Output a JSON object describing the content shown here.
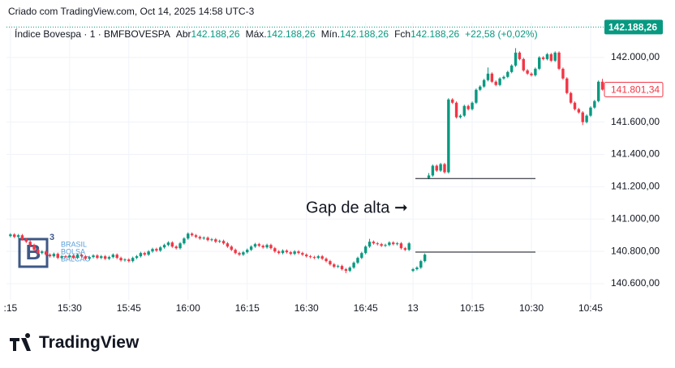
{
  "header": {
    "credit": "Criado com TradingView.com, Oct 14, 2025 14:58 UTC-3"
  },
  "chart_data": {
    "type": "candlestick",
    "legend": {
      "symbol": "Índice Bovespa · 1 · BMFBOVESPA",
      "fields": [
        {
          "label": "Abr",
          "value": "142.188,26"
        },
        {
          "label": "Máx.",
          "value": "142.188,26"
        },
        {
          "label": "Mín.",
          "value": "142.188,26"
        },
        {
          "label": "Fch",
          "value": "142.188,26"
        }
      ],
      "change": "+22,58 (+0,02%)"
    },
    "up_color": "#089981",
    "down_color": "#f23645",
    "grid": true,
    "xlim": [
      -1,
      150.5
    ],
    "xticks": [
      {
        "value": 0,
        "label": ":15"
      },
      {
        "value": 15,
        "label": "15:30"
      },
      {
        "value": 30,
        "label": "15:45"
      },
      {
        "value": 45,
        "label": "16:00"
      },
      {
        "value": 60,
        "label": "16:15"
      },
      {
        "value": 75,
        "label": "16:30"
      },
      {
        "value": 90,
        "label": "16:45"
      },
      {
        "value": 102,
        "label": "13"
      },
      {
        "value": 117,
        "label": "10:15"
      },
      {
        "value": 132,
        "label": "10:30"
      },
      {
        "value": 147,
        "label": "10:45"
      }
    ],
    "ylim": [
      140500,
      142180
    ],
    "yticks": [
      {
        "value": 140600,
        "label": "140.600,00"
      },
      {
        "value": 140800,
        "label": "140.800,00"
      },
      {
        "value": 141000,
        "label": "141.000,00"
      },
      {
        "value": 141200,
        "label": "141.200,00"
      },
      {
        "value": 141400,
        "label": "141.400,00"
      },
      {
        "value": 141600,
        "label": "141.600,00"
      },
      {
        "value": 141800,
        "label": "141.800,00"
      },
      {
        "value": 142000,
        "label": "142.000,00"
      }
    ],
    "price_tags": [
      {
        "value": 142188.26,
        "label": "142.188,26",
        "color": "#089981"
      },
      {
        "value": 141801.34,
        "label": "141.801,34",
        "color": "#f23645"
      }
    ],
    "hlines": [
      141251,
      140796
    ],
    "annotation": "Gap de alta ➞",
    "watermark": {
      "logo": "B",
      "logo_sup": "3",
      "lines": [
        "BRASIL",
        "BOLSA",
        "BALCÃO"
      ]
    },
    "ohlc": [
      [
        140895,
        140913,
        140887,
        140905
      ],
      [
        140905,
        140913,
        140882,
        140890
      ],
      [
        140890,
        140908,
        140882,
        140900
      ],
      [
        140900,
        140908,
        140867,
        140875
      ],
      [
        140875,
        140883,
        140852,
        140860
      ],
      [
        140860,
        140868,
        140832,
        140840
      ],
      [
        140840,
        140848,
        140802,
        140810
      ],
      [
        140810,
        140818,
        140782,
        140790
      ],
      [
        140790,
        140808,
        140782,
        140800
      ],
      [
        140800,
        140808,
        140772,
        140780
      ],
      [
        140780,
        140788,
        140762,
        140770
      ],
      [
        140770,
        140793,
        140762,
        140785
      ],
      [
        140785,
        140793,
        140752,
        140760
      ],
      [
        140760,
        140778,
        140752,
        140770
      ],
      [
        140770,
        140778,
        140757,
        140765
      ],
      [
        140765,
        140783,
        140757,
        140775
      ],
      [
        140775,
        140783,
        140752,
        140760
      ],
      [
        140760,
        140788,
        140752,
        140780
      ],
      [
        140780,
        140788,
        140762,
        140770
      ],
      [
        140770,
        140778,
        140747,
        140755
      ],
      [
        140755,
        140773,
        140747,
        140765
      ],
      [
        140765,
        140783,
        140757,
        140775
      ],
      [
        140775,
        140783,
        140752,
        140760
      ],
      [
        140760,
        140778,
        140752,
        140770
      ],
      [
        140770,
        140778,
        140747,
        140755
      ],
      [
        140755,
        140773,
        140747,
        140765
      ],
      [
        140765,
        140788,
        140757,
        140780
      ],
      [
        140780,
        140788,
        140752,
        140760
      ],
      [
        140760,
        140768,
        140737,
        140745
      ],
      [
        140745,
        140758,
        140737,
        140750
      ],
      [
        140750,
        140758,
        140732,
        140740
      ],
      [
        140740,
        140768,
        140732,
        140760
      ],
      [
        140760,
        140778,
        140752,
        140770
      ],
      [
        140770,
        140798,
        140762,
        140790
      ],
      [
        140790,
        140798,
        140772,
        140780
      ],
      [
        140780,
        140808,
        140772,
        140800
      ],
      [
        140800,
        140823,
        140792,
        140815
      ],
      [
        140815,
        140823,
        140797,
        140805
      ],
      [
        140805,
        140833,
        140797,
        140825
      ],
      [
        140825,
        140848,
        140817,
        140840
      ],
      [
        140840,
        140863,
        140832,
        140855
      ],
      [
        140855,
        140863,
        140822,
        140830
      ],
      [
        140830,
        140838,
        140812,
        140820
      ],
      [
        140820,
        140858,
        140812,
        140850
      ],
      [
        140850,
        140888,
        140842,
        140880
      ],
      [
        140880,
        140918,
        140872,
        140910
      ],
      [
        140910,
        140918,
        140892,
        140900
      ],
      [
        140900,
        140908,
        140882,
        140890
      ],
      [
        140890,
        140898,
        140872,
        140880
      ],
      [
        140880,
        140893,
        140872,
        140885
      ],
      [
        140885,
        140893,
        140862,
        140870
      ],
      [
        140870,
        140883,
        140862,
        140875
      ],
      [
        140875,
        140883,
        140852,
        140860
      ],
      [
        140860,
        140873,
        140852,
        140865
      ],
      [
        140865,
        140873,
        140842,
        140850
      ],
      [
        140850,
        140858,
        140822,
        140830
      ],
      [
        140830,
        140838,
        140802,
        140810
      ],
      [
        140810,
        140818,
        140782,
        140790
      ],
      [
        140790,
        140798,
        140772,
        140780
      ],
      [
        140780,
        140803,
        140772,
        140795
      ],
      [
        140795,
        140818,
        140787,
        140810
      ],
      [
        140810,
        140838,
        140802,
        140830
      ],
      [
        140830,
        140853,
        140822,
        140845
      ],
      [
        140845,
        140853,
        140827,
        140835
      ],
      [
        140835,
        140843,
        140817,
        140825
      ],
      [
        140825,
        140848,
        140817,
        140840
      ],
      [
        140840,
        140848,
        140812,
        140820
      ],
      [
        140820,
        140828,
        140792,
        140800
      ],
      [
        140800,
        140808,
        140782,
        140790
      ],
      [
        140790,
        140813,
        140782,
        140805
      ],
      [
        140805,
        140813,
        140787,
        140795
      ],
      [
        140795,
        140803,
        140777,
        140785
      ],
      [
        140785,
        140808,
        140777,
        140800
      ],
      [
        140800,
        140808,
        140782,
        140790
      ],
      [
        140790,
        140798,
        140772,
        140780
      ],
      [
        140780,
        140788,
        140762,
        140770
      ],
      [
        140770,
        140778,
        140757,
        140765
      ],
      [
        140765,
        140773,
        140752,
        140760
      ],
      [
        140760,
        140778,
        140752,
        140770
      ],
      [
        140770,
        140778,
        140747,
        140755
      ],
      [
        140755,
        140763,
        140732,
        140740
      ],
      [
        140740,
        140748,
        140712,
        140720
      ],
      [
        140720,
        140728,
        140697,
        140705
      ],
      [
        140705,
        140718,
        140697,
        140710
      ],
      [
        140710,
        140718,
        140682,
        140690
      ],
      [
        140690,
        140698,
        140665,
        140680
      ],
      [
        140680,
        140708,
        140672,
        140700
      ],
      [
        140700,
        140738,
        140692,
        140730
      ],
      [
        140730,
        140768,
        140722,
        140760
      ],
      [
        140760,
        140798,
        140752,
        140790
      ],
      [
        140790,
        140838,
        140782,
        140830
      ],
      [
        140830,
        140878,
        140822,
        140860
      ],
      [
        140860,
        140868,
        140842,
        140850
      ],
      [
        140850,
        140858,
        140837,
        140845
      ],
      [
        140845,
        140853,
        140827,
        140835
      ],
      [
        140835,
        140848,
        140827,
        140840
      ],
      [
        140840,
        140863,
        140832,
        140855
      ],
      [
        140855,
        140863,
        140837,
        140845
      ],
      [
        140845,
        140858,
        140837,
        140850
      ],
      [
        140850,
        140858,
        140812,
        140820
      ],
      [
        140820,
        140828,
        140802,
        140810
      ],
      [
        140810,
        140858,
        140802,
        140850
      ],
      [
        140680,
        140698,
        140672,
        140690
      ],
      [
        140690,
        140708,
        140682,
        140700
      ],
      [
        140700,
        140748,
        140692,
        140740
      ],
      [
        140740,
        140788,
        140732,
        140780
      ],
      [
        141255,
        141285,
        141247,
        141270
      ],
      [
        141270,
        141338,
        141262,
        141330
      ],
      [
        141330,
        141338,
        141292,
        141300
      ],
      [
        141300,
        141348,
        141292,
        141340
      ],
      [
        141340,
        141348,
        141282,
        141290
      ],
      [
        141290,
        141748,
        141282,
        141740
      ],
      [
        141740,
        141748,
        141712,
        141720
      ],
      [
        141720,
        141728,
        141622,
        141630
      ],
      [
        141630,
        141648,
        141622,
        141640
      ],
      [
        141640,
        141708,
        141632,
        141700
      ],
      [
        141700,
        141708,
        141672,
        141680
      ],
      [
        141680,
        141728,
        141672,
        141720
      ],
      [
        141720,
        141808,
        141712,
        141800
      ],
      [
        141800,
        141828,
        141792,
        141820
      ],
      [
        141820,
        141868,
        141812,
        141860
      ],
      [
        141860,
        141938,
        141852,
        141900
      ],
      [
        141900,
        141908,
        141842,
        141850
      ],
      [
        141850,
        141858,
        141822,
        141830
      ],
      [
        141830,
        141878,
        141822,
        141870
      ],
      [
        141870,
        141888,
        141862,
        141880
      ],
      [
        141880,
        141918,
        141872,
        141910
      ],
      [
        141910,
        141958,
        141902,
        141950
      ],
      [
        141950,
        142058,
        141942,
        142030
      ],
      [
        142030,
        142038,
        141982,
        141990
      ],
      [
        141990,
        141998,
        141912,
        141920
      ],
      [
        141920,
        141928,
        141892,
        141900
      ],
      [
        141900,
        141908,
        141882,
        141890
      ],
      [
        141890,
        141938,
        141882,
        141930
      ],
      [
        141930,
        142008,
        141922,
        142000
      ],
      [
        142000,
        142008,
        141982,
        141990
      ],
      [
        141990,
        142028,
        141982,
        142020
      ],
      [
        142020,
        142028,
        141972,
        141980
      ],
      [
        141980,
        142038,
        141972,
        142030
      ],
      [
        142030,
        142038,
        141922,
        141930
      ],
      [
        141930,
        141938,
        141862,
        141870
      ],
      [
        141870,
        141878,
        141772,
        141780
      ],
      [
        141780,
        141788,
        141712,
        141720
      ],
      [
        141720,
        141728,
        141672,
        141680
      ],
      [
        141680,
        141688,
        141652,
        141660
      ],
      [
        141660,
        141668,
        141582,
        141600
      ],
      [
        141600,
        141648,
        141592,
        141640
      ],
      [
        141640,
        141698,
        141632,
        141690
      ],
      [
        141690,
        141738,
        141682,
        141730
      ],
      [
        141730,
        141858,
        141722,
        141850
      ],
      [
        141850,
        141868,
        141795,
        141801.34
      ]
    ]
  },
  "footer": {
    "brand": "TradingView"
  }
}
